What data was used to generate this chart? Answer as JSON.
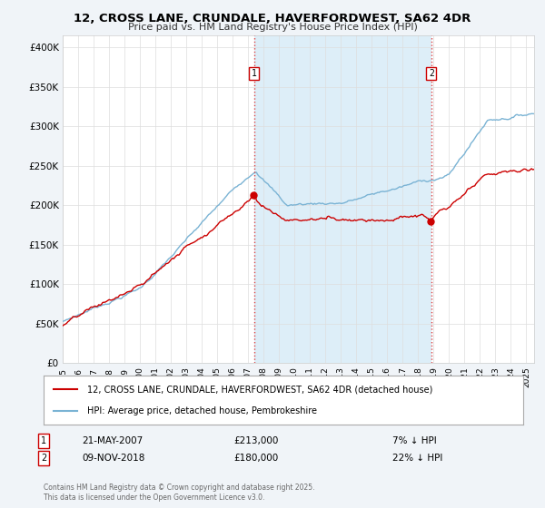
{
  "title1": "12, CROSS LANE, CRUNDALE, HAVERFORDWEST, SA62 4DR",
  "title2": "Price paid vs. HM Land Registry's House Price Index (HPI)",
  "ylabel_ticks": [
    "£0",
    "£50K",
    "£100K",
    "£150K",
    "£200K",
    "£250K",
    "£300K",
    "£350K",
    "£400K"
  ],
  "ytick_values": [
    0,
    50000,
    100000,
    150000,
    200000,
    250000,
    300000,
    350000,
    400000
  ],
  "ylim": [
    0,
    415000
  ],
  "xlim_start": 1995.0,
  "xlim_end": 2025.5,
  "sale1_year": 2007.38,
  "sale1_price": 213000,
  "sale2_year": 2018.85,
  "sale2_price": 180000,
  "hpi_color": "#7ab3d4",
  "sale_color": "#cc0000",
  "shade_color": "#ddeef8",
  "legend_label1": "12, CROSS LANE, CRUNDALE, HAVERFORDWEST, SA62 4DR (detached house)",
  "legend_label2": "HPI: Average price, detached house, Pembrokeshire",
  "note1_label": "1",
  "note1_date": "21-MAY-2007",
  "note1_price": "£213,000",
  "note1_hpi": "7% ↓ HPI",
  "note2_label": "2",
  "note2_date": "09-NOV-2018",
  "note2_price": "£180,000",
  "note2_hpi": "22% ↓ HPI",
  "footnote": "Contains HM Land Registry data © Crown copyright and database right 2025.\nThis data is licensed under the Open Government Licence v3.0.",
  "bg_color": "#f0f4f8",
  "plot_bg_color": "#ffffff"
}
